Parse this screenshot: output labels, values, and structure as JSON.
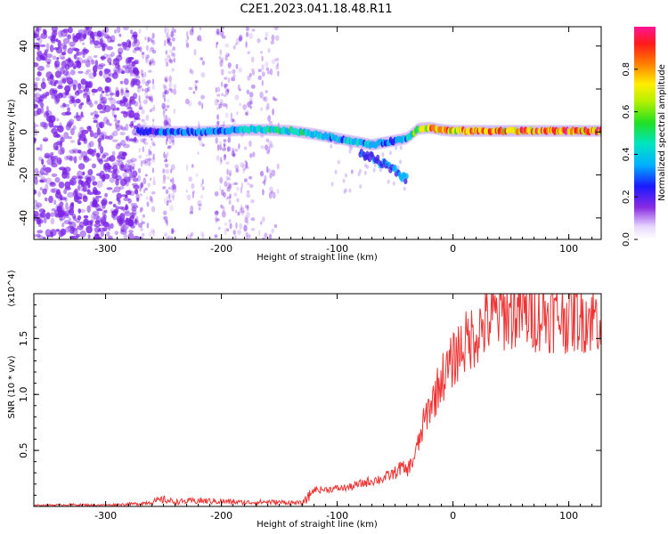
{
  "title": "C2E1.2023.041.18.48.R11",
  "spectrogram": {
    "xlabel": "Height of straight line (km)",
    "ylabel": "Frequency (Hz)",
    "xlim": [
      -362,
      128
    ],
    "ylim": [
      -50,
      49
    ],
    "x_ticks": [
      -300,
      -200,
      -100,
      0,
      100
    ],
    "y_ticks": [
      40,
      20,
      0,
      -20,
      -40
    ],
    "colorbar": {
      "label": "Normalized spectral amplitude",
      "range": [
        0,
        1
      ],
      "ticks": [
        0.0,
        0.2,
        0.4,
        0.6,
        0.8
      ],
      "tick_labels": [
        "0.0",
        "0.2",
        "0.4",
        "0.6",
        "0.8"
      ]
    }
  },
  "chart_data": [
    {
      "type": "heatmap",
      "title": "C2E1.2023.041.18.48.R11",
      "xlabel": "Height of straight line (km)",
      "ylabel": "Frequency (Hz)",
      "xlim": [
        -362,
        128
      ],
      "ylim": [
        -50,
        49
      ],
      "value_label": "Normalized spectral amplitude",
      "value_range": [
        0,
        1
      ],
      "signal_band": {
        "x": [
          -272,
          -250,
          -220,
          -200,
          -180,
          -160,
          -140,
          -120,
          -100,
          -90,
          -80,
          -70,
          -60,
          -50,
          -40,
          -30,
          -20,
          -10,
          0,
          20,
          40,
          60,
          80,
          100,
          128
        ],
        "frequency": [
          0.5,
          0.0,
          0.0,
          0.5,
          1.0,
          1.0,
          0.5,
          -1.0,
          -3.0,
          -4.0,
          -5.0,
          -6.0,
          -5.0,
          -4.0,
          -3.0,
          1.5,
          2.0,
          1.0,
          0.5,
          0.5,
          0.5,
          0.5,
          0.5,
          0.5,
          0.5
        ],
        "amplitude": [
          0.3,
          0.35,
          0.4,
          0.4,
          0.5,
          0.55,
          0.55,
          0.5,
          0.45,
          0.5,
          0.5,
          0.45,
          0.4,
          0.35,
          0.45,
          0.7,
          0.9,
          0.85,
          0.85,
          0.9,
          0.9,
          0.95,
          0.95,
          0.95,
          0.95
        ]
      },
      "descending_branch": {
        "x": [
          -80,
          -70,
          -60,
          -50,
          -45,
          -40
        ],
        "frequency": [
          -10,
          -12,
          -15,
          -18,
          -20,
          -22
        ]
      },
      "noise_region_x": [
        -362,
        -272
      ]
    },
    {
      "type": "line",
      "xlabel": "Height of straight line (km)",
      "ylabel": "SNR (10 * v/v)",
      "y_multiplier": "(x10^4)",
      "xlim": [
        -362,
        128
      ],
      "ylim": [
        0,
        19000
      ],
      "x_ticks": [
        -300,
        -200,
        -100,
        0,
        100
      ],
      "y_ticks": [
        0.5,
        1.0,
        1.5
      ],
      "series": [
        {
          "color": "#ee3333",
          "x": [
            -362,
            -330,
            -300,
            -270,
            -255,
            -250,
            -240,
            -220,
            -200,
            -180,
            -160,
            -130,
            -125,
            -120,
            -110,
            -100,
            -90,
            -80,
            -70,
            -60,
            -50,
            -45,
            -40,
            -35,
            -30,
            -25,
            -20,
            -15,
            -10,
            -5,
            0,
            5,
            10,
            20,
            30,
            40,
            50,
            60,
            80,
            100,
            110,
            120,
            128
          ],
          "y": [
            100,
            150,
            120,
            250,
            500,
            600,
            400,
            500,
            450,
            350,
            400,
            300,
            800,
            1500,
            1500,
            1600,
            1700,
            2000,
            2300,
            2500,
            3000,
            3500,
            3200,
            4000,
            5500,
            7500,
            9000,
            10000,
            11500,
            12000,
            13000,
            14000,
            14500,
            15500,
            16500,
            17200,
            17300,
            17200,
            17100,
            17000,
            17100,
            16900,
            17000
          ]
        }
      ]
    }
  ],
  "colors": {
    "series_line": "#ee3333",
    "axis": "#000000",
    "noise_dots": "#7a22e6"
  }
}
